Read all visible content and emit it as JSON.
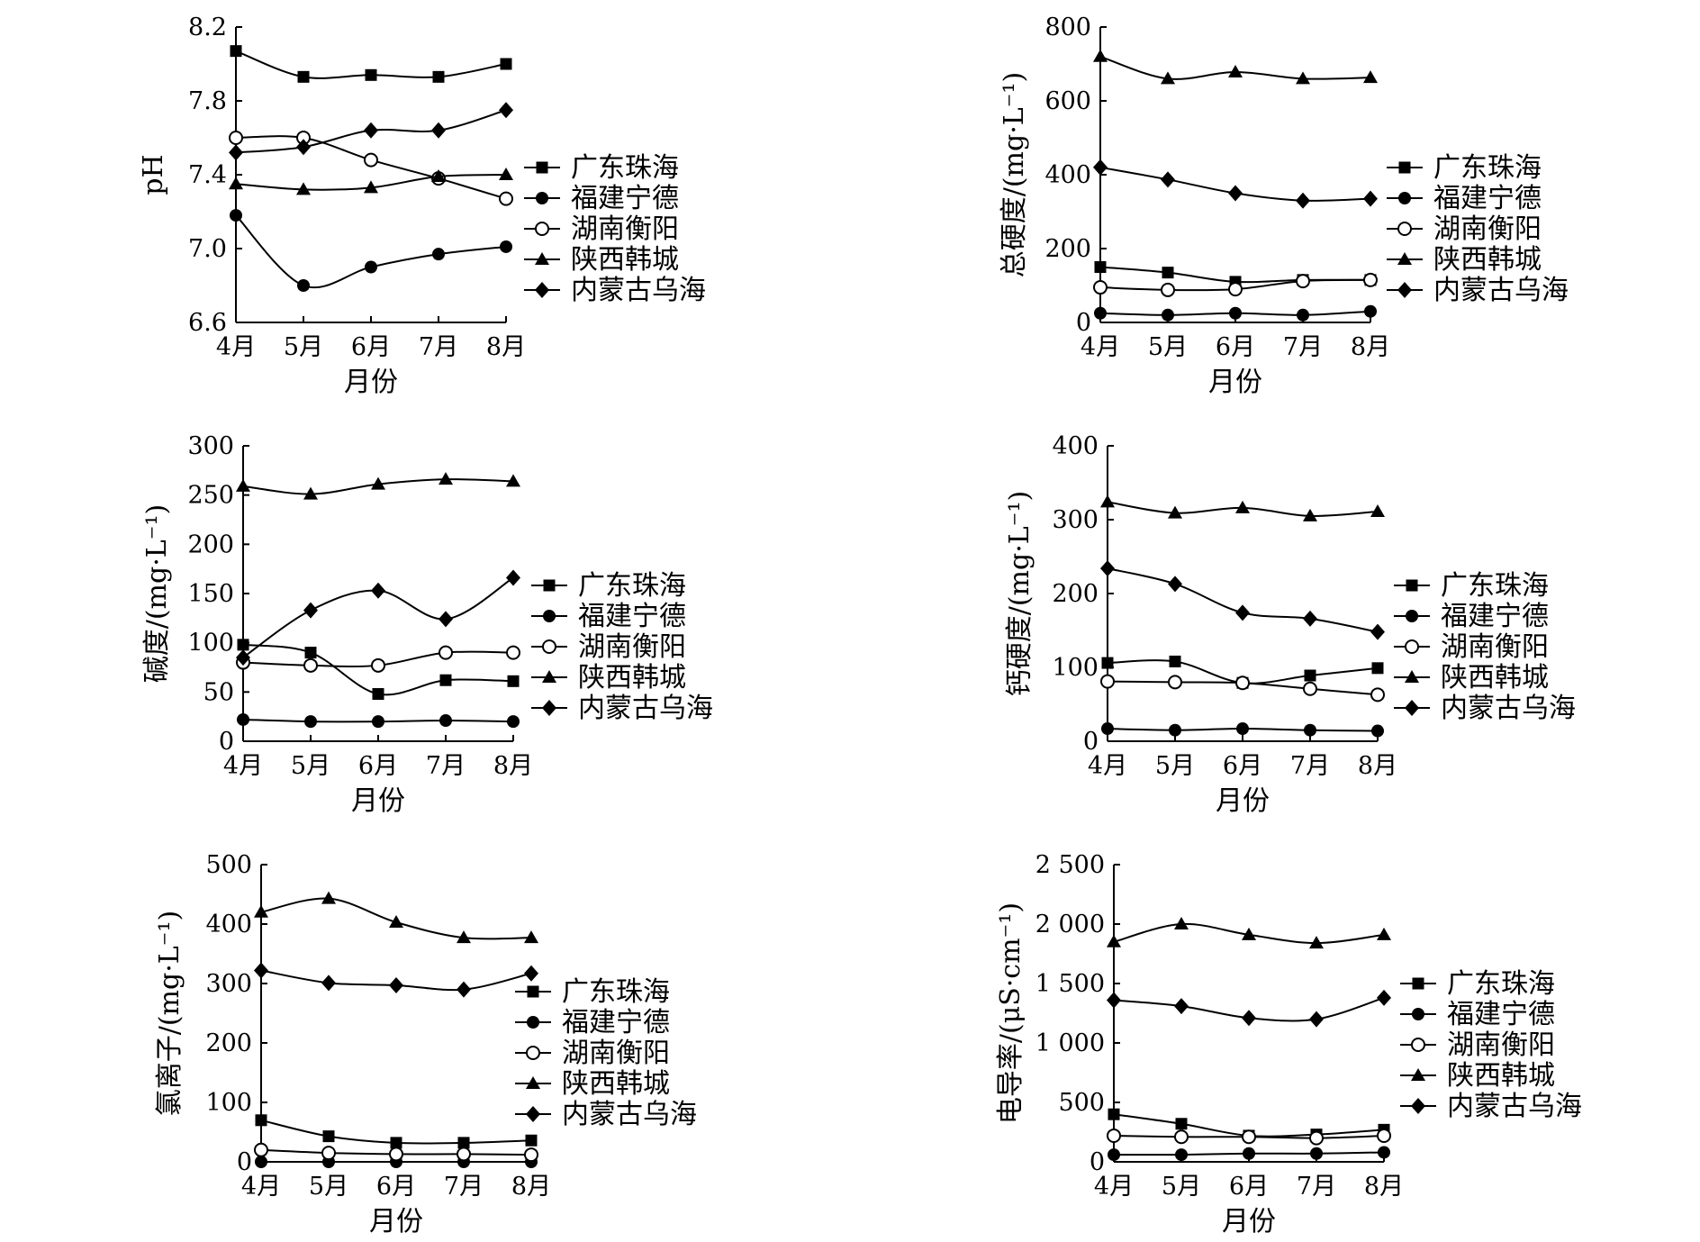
{
  "figure": {
    "colors": {
      "line": "#000000",
      "background": "#ffffff"
    },
    "legend_items": [
      "广东珠海",
      "福建宁德",
      "湖南衡阳",
      "陕西韩城",
      "内蒙古乌海"
    ],
    "legend_markers": [
      "square",
      "circle",
      "open-circle",
      "triangle",
      "diamond"
    ]
  },
  "chart_data": [
    {
      "type": "line",
      "xlabel": "月份",
      "ylabel": "pH",
      "categories": [
        "4月",
        "5月",
        "6月",
        "7月",
        "8月"
      ],
      "ylim": [
        6.6,
        8.2
      ],
      "yticks": [
        6.6,
        7.0,
        7.4,
        7.8,
        8.2
      ],
      "ytick_labels": [
        "6.6",
        "7.0",
        "7.4",
        "7.8",
        "8.2"
      ],
      "grid": false,
      "legend_position": "right",
      "series": [
        {
          "name": "广东珠海",
          "marker": "square",
          "values": [
            8.07,
            7.93,
            7.94,
            7.93,
            8.0
          ]
        },
        {
          "name": "福建宁德",
          "marker": "circle",
          "values": [
            7.18,
            6.8,
            6.9,
            6.97,
            7.01
          ]
        },
        {
          "name": "湖南衡阳",
          "marker": "open-circle",
          "values": [
            7.6,
            7.6,
            7.48,
            7.38,
            7.27
          ]
        },
        {
          "name": "陕西韩城",
          "marker": "triangle",
          "values": [
            7.35,
            7.32,
            7.33,
            7.39,
            7.4
          ]
        },
        {
          "name": "内蒙古乌海",
          "marker": "diamond",
          "values": [
            7.52,
            7.55,
            7.64,
            7.64,
            7.75
          ]
        }
      ]
    },
    {
      "type": "line",
      "xlabel": "月份",
      "ylabel": "总硬度/(mg·L⁻¹)",
      "categories": [
        "4月",
        "5月",
        "6月",
        "7月",
        "8月"
      ],
      "ylim": [
        0,
        800
      ],
      "yticks": [
        0,
        200,
        400,
        600,
        800
      ],
      "ytick_labels": [
        "0",
        "200",
        "400",
        "600",
        "800"
      ],
      "grid": false,
      "legend_position": "right",
      "series": [
        {
          "name": "广东珠海",
          "marker": "square",
          "values": [
            150,
            135,
            110,
            115,
            115
          ]
        },
        {
          "name": "福建宁德",
          "marker": "circle",
          "values": [
            25,
            20,
            25,
            20,
            30
          ]
        },
        {
          "name": "湖南衡阳",
          "marker": "open-circle",
          "values": [
            95,
            88,
            90,
            112,
            115
          ]
        },
        {
          "name": "陕西韩城",
          "marker": "triangle",
          "values": [
            720,
            660,
            678,
            660,
            663
          ]
        },
        {
          "name": "内蒙古乌海",
          "marker": "diamond",
          "values": [
            420,
            387,
            350,
            330,
            335
          ]
        }
      ]
    },
    {
      "type": "line",
      "xlabel": "月份",
      "ylabel": "碱度/(mg·L⁻¹)",
      "categories": [
        "4月",
        "5月",
        "6月",
        "7月",
        "8月"
      ],
      "ylim": [
        0,
        300
      ],
      "yticks": [
        0,
        50,
        100,
        150,
        200,
        250,
        300
      ],
      "ytick_labels": [
        "0",
        "50",
        "100",
        "150",
        "200",
        "250",
        "300"
      ],
      "grid": false,
      "legend_position": "right",
      "series": [
        {
          "name": "广东珠海",
          "marker": "square",
          "values": [
            98,
            90,
            48,
            62,
            61
          ]
        },
        {
          "name": "福建宁德",
          "marker": "circle",
          "values": [
            22,
            20,
            20,
            21,
            20
          ]
        },
        {
          "name": "湖南衡阳",
          "marker": "open-circle",
          "values": [
            80,
            77,
            77,
            90,
            90
          ]
        },
        {
          "name": "陕西韩城",
          "marker": "triangle",
          "values": [
            259,
            251,
            261,
            266,
            264
          ]
        },
        {
          "name": "内蒙古乌海",
          "marker": "diamond",
          "values": [
            85,
            133,
            153,
            124,
            166
          ]
        }
      ]
    },
    {
      "type": "line",
      "xlabel": "月份",
      "ylabel": "钙硬度/(mg·L⁻¹)",
      "categories": [
        "4月",
        "5月",
        "6月",
        "7月",
        "8月"
      ],
      "ylim": [
        0,
        400
      ],
      "yticks": [
        0,
        100,
        200,
        300,
        400
      ],
      "ytick_labels": [
        "0",
        "100",
        "200",
        "300",
        "400"
      ],
      "grid": false,
      "legend_position": "right",
      "series": [
        {
          "name": "广东珠海",
          "marker": "square",
          "values": [
            106,
            108,
            79,
            89,
            99
          ]
        },
        {
          "name": "福建宁德",
          "marker": "circle",
          "values": [
            17,
            15,
            17,
            15,
            14
          ]
        },
        {
          "name": "湖南衡阳",
          "marker": "open-circle",
          "values": [
            81,
            80,
            79,
            71,
            63
          ]
        },
        {
          "name": "陕西韩城",
          "marker": "triangle",
          "values": [
            324,
            309,
            316,
            305,
            311
          ]
        },
        {
          "name": "内蒙古乌海",
          "marker": "diamond",
          "values": [
            234,
            213,
            174,
            166,
            148
          ]
        }
      ]
    },
    {
      "type": "line",
      "xlabel": "月份",
      "ylabel": "氯离子/(mg·L⁻¹)",
      "categories": [
        "4月",
        "5月",
        "6月",
        "7月",
        "8月"
      ],
      "ylim": [
        0,
        500
      ],
      "yticks": [
        0,
        100,
        200,
        300,
        400,
        500
      ],
      "ytick_labels": [
        "0",
        "100",
        "200",
        "300",
        "400",
        "500"
      ],
      "grid": false,
      "legend_position": "right",
      "series": [
        {
          "name": "广东珠海",
          "marker": "square",
          "values": [
            70,
            43,
            32,
            32,
            36
          ]
        },
        {
          "name": "福建宁德",
          "marker": "circle",
          "values": [
            0,
            0,
            0,
            0,
            0
          ]
        },
        {
          "name": "湖南衡阳",
          "marker": "open-circle",
          "values": [
            20,
            15,
            13,
            13,
            12
          ]
        },
        {
          "name": "陕西韩城",
          "marker": "triangle",
          "values": [
            420,
            443,
            403,
            377,
            377
          ]
        },
        {
          "name": "内蒙古乌海",
          "marker": "diamond",
          "values": [
            322,
            301,
            297,
            290,
            317
          ]
        }
      ]
    },
    {
      "type": "line",
      "xlabel": "月份",
      "ylabel": "电导率/(μS·cm⁻¹)",
      "categories": [
        "4月",
        "5月",
        "6月",
        "7月",
        "8月"
      ],
      "ylim": [
        0,
        2500
      ],
      "yticks": [
        0,
        500,
        1000,
        1500,
        2000,
        2500
      ],
      "ytick_labels": [
        "0",
        "500",
        "1 000",
        "1 500",
        "2 000",
        "2 500"
      ],
      "grid": false,
      "legend_position": "right",
      "series": [
        {
          "name": "广东珠海",
          "marker": "square",
          "values": [
            400,
            320,
            220,
            230,
            270
          ]
        },
        {
          "name": "福建宁德",
          "marker": "circle",
          "values": [
            60,
            60,
            70,
            70,
            80
          ]
        },
        {
          "name": "湖南衡阳",
          "marker": "open-circle",
          "values": [
            220,
            210,
            210,
            200,
            220
          ]
        },
        {
          "name": "陕西韩城",
          "marker": "triangle",
          "values": [
            1850,
            2000,
            1910,
            1840,
            1910
          ]
        },
        {
          "name": "内蒙古乌海",
          "marker": "diamond",
          "values": [
            1360,
            1310,
            1210,
            1200,
            1380
          ]
        }
      ]
    }
  ]
}
